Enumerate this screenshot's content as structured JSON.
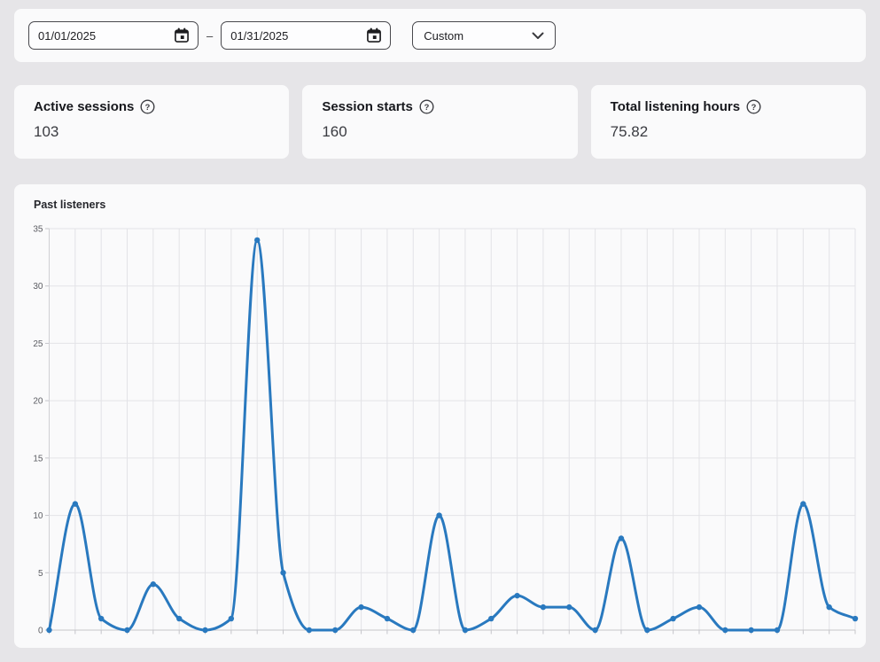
{
  "toolbar": {
    "start_date": "01/01/2025",
    "end_date": "01/31/2025",
    "separator": "–",
    "preset": "Custom"
  },
  "stats": {
    "active_sessions": {
      "label": "Active sessions",
      "value": "103"
    },
    "session_starts": {
      "label": "Session starts",
      "value": "160"
    },
    "listening_hours": {
      "label": "Total listening hours",
      "value": "75.82"
    }
  },
  "chart_data": {
    "type": "line",
    "title": "Past listeners",
    "values": [
      0,
      11,
      1,
      0,
      4,
      1,
      0,
      1,
      34,
      5,
      0,
      0,
      2,
      1,
      0,
      10,
      0,
      1,
      3,
      2,
      2,
      0,
      8,
      0,
      1,
      2,
      0,
      0,
      0,
      11,
      2,
      1
    ],
    "ylim": [
      0,
      35
    ],
    "yticks": [
      0,
      5,
      10,
      15,
      20,
      25,
      30,
      35
    ],
    "x_tick_labels": "none",
    "grid": true,
    "smoothing": "monotone",
    "colors": {
      "line": "#2979bf",
      "marker": "#2979bf",
      "grid": "#e3e3e7",
      "axis": "#c5c5ca",
      "y_axis_line": "#cfcfd4",
      "tick_label": "#5c5d63",
      "plot_background": "#fafafb"
    }
  }
}
